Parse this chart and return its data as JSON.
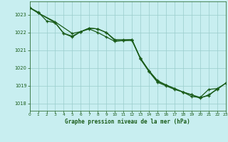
{
  "title": "Graphe pression niveau de la mer (hPa)",
  "background_color": "#c8eef0",
  "grid_color": "#99cccc",
  "line_color": "#1a5c1a",
  "marker_color": "#1a5c1a",
  "tick_color": "#1a5c1a",
  "yticks": [
    1018,
    1019,
    1020,
    1021,
    1022,
    1023
  ],
  "ylim": [
    1017.6,
    1023.75
  ],
  "xlim": [
    0,
    23
  ],
  "series1_x": [
    0,
    1,
    2,
    3,
    4,
    5,
    6,
    7,
    8,
    9,
    10,
    11,
    12,
    13,
    14,
    15,
    16,
    17,
    18,
    19,
    20,
    21,
    22
  ],
  "series1_y": [
    1023.4,
    1023.15,
    1022.65,
    1022.55,
    1021.95,
    1021.8,
    1022.05,
    1022.2,
    1022.0,
    1021.75,
    1021.5,
    1021.55,
    1021.55,
    1020.55,
    1019.85,
    1019.3,
    1019.05,
    1018.85,
    1018.65,
    1018.4,
    1018.35,
    1018.8,
    1018.85
  ],
  "series2_x": [
    0,
    1,
    3,
    5,
    6,
    7,
    8,
    9,
    10,
    11,
    12,
    13,
    14,
    15,
    16,
    17,
    18,
    19,
    20,
    21,
    22,
    23
  ],
  "series2_y": [
    1023.4,
    1023.1,
    1022.6,
    1021.95,
    1022.05,
    1022.25,
    1022.2,
    1022.0,
    1021.6,
    1021.6,
    1021.6,
    1020.55,
    1019.85,
    1019.25,
    1019.05,
    1018.85,
    1018.65,
    1018.5,
    1018.35,
    1018.45,
    1018.85,
    1019.15
  ],
  "series3_x": [
    0,
    1,
    3,
    4,
    5,
    6,
    7,
    8,
    9,
    10,
    11,
    12,
    13,
    14,
    15,
    16,
    17,
    18,
    19,
    20,
    21,
    22,
    23
  ],
  "series3_y": [
    1023.4,
    1023.1,
    1022.55,
    1021.95,
    1021.75,
    1022.05,
    1022.25,
    1022.2,
    1022.0,
    1021.55,
    1021.55,
    1021.6,
    1020.5,
    1019.8,
    1019.2,
    1019.0,
    1018.8,
    1018.65,
    1018.5,
    1018.3,
    1018.5,
    1018.8,
    1019.15
  ]
}
